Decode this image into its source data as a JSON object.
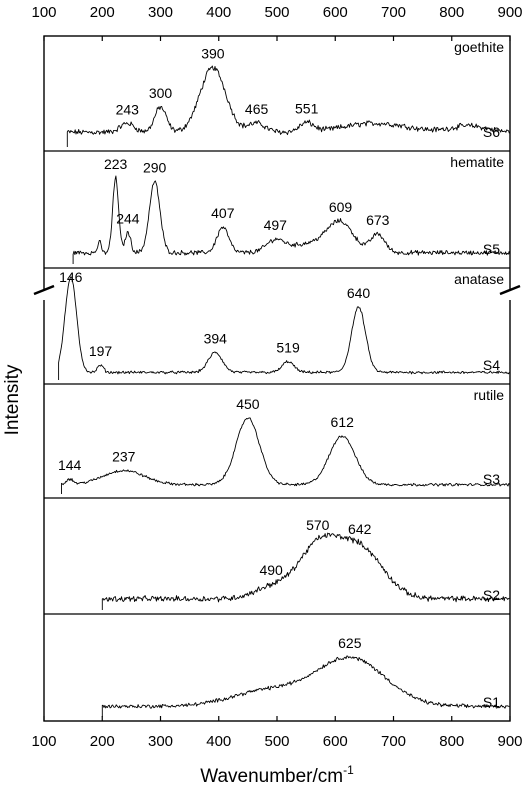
{
  "chart_data": {
    "type": "line",
    "xlabel": "Wavenumber/cm",
    "xlabel_superscript": "-1",
    "ylabel": "Intensity",
    "xlim": [
      100,
      900
    ],
    "x_ticks": [
      100,
      200,
      300,
      400,
      500,
      600,
      700,
      800,
      900
    ],
    "x_tick_labels": [
      "100",
      "200",
      "300",
      "400",
      "500",
      "600",
      "700",
      "800",
      "900"
    ],
    "x_axis_top": true,
    "grid": false,
    "axis_break": "between S5 and S4 on the left and right axes",
    "series": [
      {
        "name": "S6",
        "mineral": "goethite",
        "x_start": 140,
        "baseline": 0.12,
        "noise": 0.025,
        "peaks": [
          {
            "x": 243,
            "height": 0.1,
            "width": 12,
            "label": "243"
          },
          {
            "x": 300,
            "height": 0.28,
            "width": 10,
            "label": "300"
          },
          {
            "x": 390,
            "height": 0.72,
            "width": 22,
            "label": "390"
          },
          {
            "x": 465,
            "height": 0.1,
            "width": 15,
            "label": "465"
          },
          {
            "x": 551,
            "height": 0.1,
            "width": 12,
            "label": "551"
          },
          {
            "x": 670,
            "height": 0.1,
            "width": 55,
            "label": ""
          },
          {
            "x": 830,
            "height": 0.07,
            "width": 30,
            "label": ""
          }
        ]
      },
      {
        "name": "S5",
        "mineral": "hematite",
        "x_start": 150,
        "baseline": 0.08,
        "noise": 0.02,
        "peaks": [
          {
            "x": 195,
            "height": 0.12,
            "width": 3,
            "label": ""
          },
          {
            "x": 223,
            "height": 0.82,
            "width": 5,
            "label": "223"
          },
          {
            "x": 244,
            "height": 0.22,
            "width": 5,
            "label": "244"
          },
          {
            "x": 290,
            "height": 0.78,
            "width": 9,
            "label": "290"
          },
          {
            "x": 407,
            "height": 0.28,
            "width": 10,
            "label": "407"
          },
          {
            "x": 497,
            "height": 0.12,
            "width": 15,
            "label": "497"
          },
          {
            "x": 609,
            "height": 0.3,
            "width": 22,
            "label": "609"
          },
          {
            "x": 673,
            "height": 0.2,
            "width": 12,
            "label": "673"
          },
          {
            "x": 560,
            "height": 0.1,
            "width": 40,
            "label": ""
          }
        ]
      },
      {
        "name": "S4",
        "mineral": "anatase",
        "x_start": 125,
        "baseline": 0.04,
        "noise": 0.012,
        "peaks": [
          {
            "x": 146,
            "height": 1.05,
            "width": 10,
            "label": "146"
          },
          {
            "x": 197,
            "height": 0.08,
            "width": 5,
            "label": "197"
          },
          {
            "x": 394,
            "height": 0.22,
            "width": 12,
            "label": "394"
          },
          {
            "x": 519,
            "height": 0.12,
            "width": 10,
            "label": "519"
          },
          {
            "x": 640,
            "height": 0.72,
            "width": 12,
            "label": "640"
          }
        ]
      },
      {
        "name": "S3",
        "mineral": "rutile",
        "x_start": 130,
        "baseline": 0.06,
        "noise": 0.012,
        "peaks": [
          {
            "x": 144,
            "height": 0.06,
            "width": 6,
            "label": "144"
          },
          {
            "x": 237,
            "height": 0.16,
            "width": 35,
            "label": "237"
          },
          {
            "x": 450,
            "height": 0.75,
            "width": 20,
            "label": "450"
          },
          {
            "x": 612,
            "height": 0.55,
            "width": 22,
            "label": "612"
          }
        ]
      },
      {
        "name": "S2",
        "mineral": "",
        "x_start": 200,
        "baseline": 0.08,
        "noise": 0.025,
        "peaks": [
          {
            "x": 490,
            "height": 0.12,
            "width": 30,
            "label": "490"
          },
          {
            "x": 570,
            "height": 0.55,
            "width": 35,
            "label": "570"
          },
          {
            "x": 642,
            "height": 0.55,
            "width": 40,
            "label": "642"
          }
        ]
      },
      {
        "name": "S1",
        "mineral": "",
        "x_start": 200,
        "baseline": 0.08,
        "noise": 0.018,
        "peaks": [
          {
            "x": 480,
            "height": 0.18,
            "width": 60,
            "label": ""
          },
          {
            "x": 625,
            "height": 0.58,
            "width": 60,
            "label": "625"
          }
        ]
      }
    ]
  }
}
